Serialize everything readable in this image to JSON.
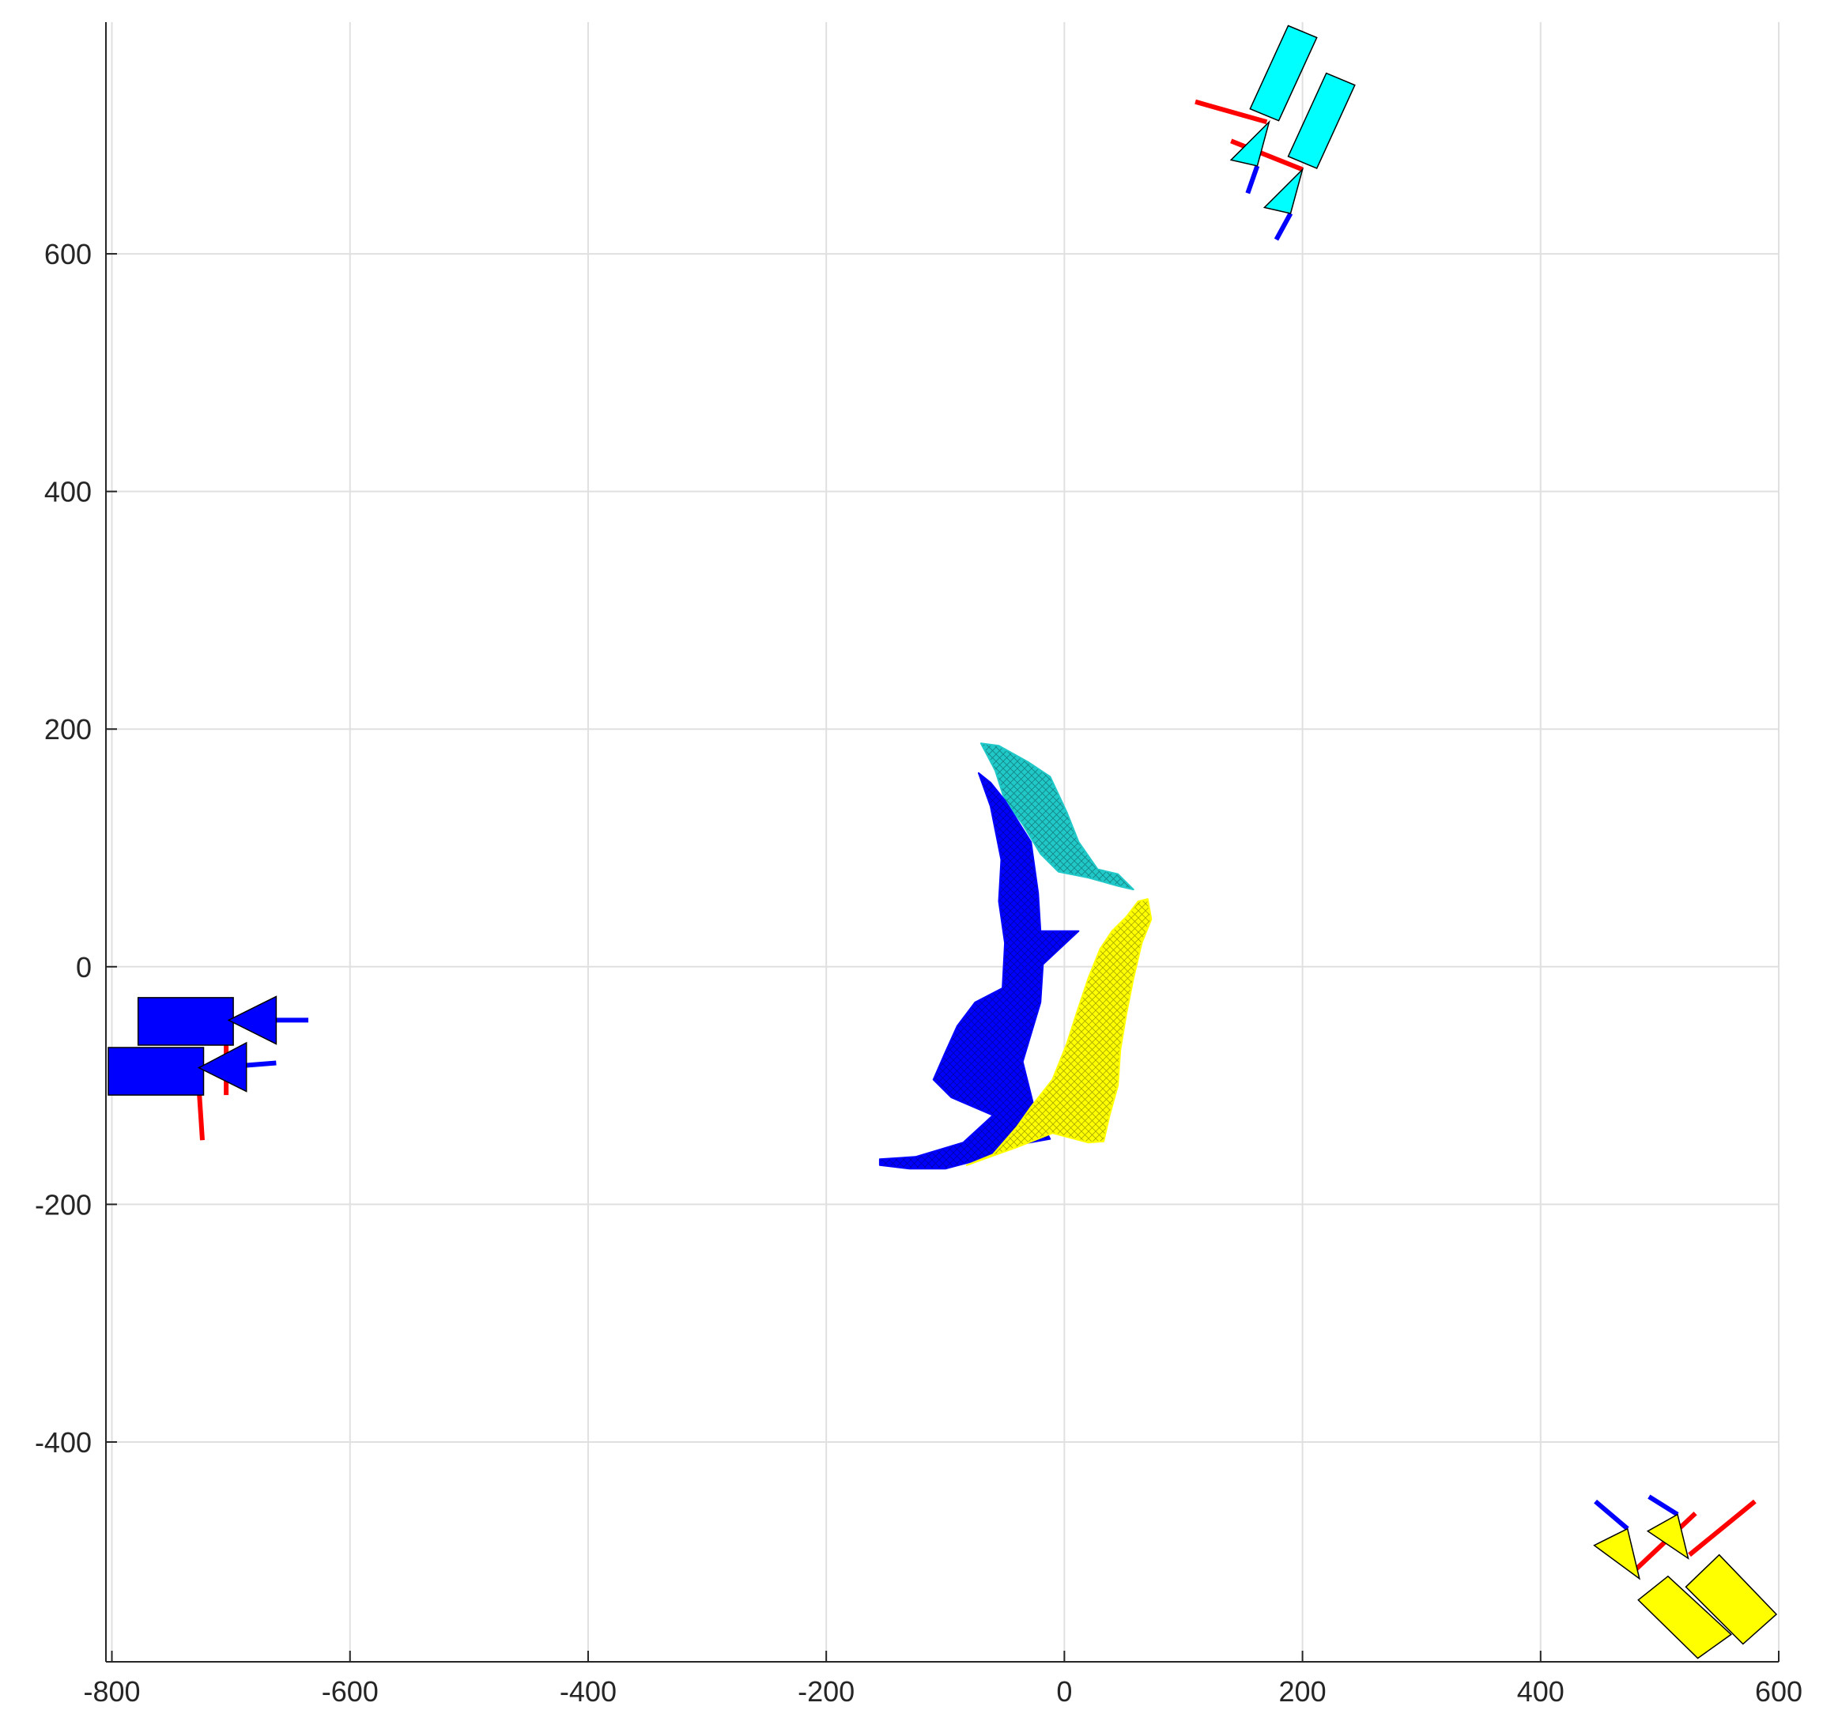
{
  "chart_data": {
    "type": "scatter",
    "title": "",
    "xlabel": "",
    "ylabel": "",
    "xlim": [
      -805,
      600
    ],
    "ylim": [
      -585,
      795
    ],
    "grid": true,
    "x_ticks": [
      -800,
      -600,
      -400,
      -200,
      0,
      200,
      400,
      600
    ],
    "y_ticks": [
      -400,
      -200,
      0,
      200,
      400,
      600
    ],
    "x_tick_labels": [
      "-800",
      "-600",
      "-400",
      "-200",
      "0",
      "200",
      "400",
      "600"
    ],
    "y_tick_labels": [
      "-400",
      "-200",
      "0",
      "200",
      "400",
      "600"
    ],
    "colors": {
      "cyan": "#00ffff",
      "blue": "#0000ff",
      "yellow": "#ffff00",
      "red": "#ff0000",
      "mesh_cyan": "#20c8c8",
      "edge": "#000000",
      "grid": "#e0e0e0",
      "axis": "#262626"
    },
    "surfaces": [
      {
        "color": "mesh_cyan",
        "outline": [
          [
            -70,
            188
          ],
          [
            -55,
            186
          ],
          [
            -30,
            172
          ],
          [
            -12,
            160
          ],
          [
            2,
            130
          ],
          [
            12,
            105
          ],
          [
            28,
            82
          ],
          [
            45,
            78
          ],
          [
            58,
            65
          ],
          [
            45,
            68
          ],
          [
            20,
            75
          ],
          [
            -5,
            80
          ],
          [
            -20,
            95
          ],
          [
            -35,
            120
          ],
          [
            -50,
            140
          ],
          [
            -58,
            165
          ],
          [
            -70,
            188
          ]
        ]
      },
      {
        "color": "blue",
        "outline": [
          [
            -72,
            163
          ],
          [
            -62,
            155
          ],
          [
            -50,
            140
          ],
          [
            -28,
            105
          ],
          [
            -22,
            62
          ],
          [
            -20,
            30
          ],
          [
            12,
            30
          ],
          [
            -18,
            2
          ],
          [
            -20,
            -30
          ],
          [
            -35,
            -80
          ],
          [
            -25,
            -120
          ],
          [
            -12,
            -145
          ],
          [
            -40,
            -150
          ],
          [
            -70,
            -162
          ],
          [
            -100,
            -170
          ],
          [
            -130,
            -170
          ],
          [
            -155,
            -167
          ],
          [
            -155,
            -162
          ],
          [
            -125,
            -160
          ],
          [
            -85,
            -148
          ],
          [
            -60,
            -125
          ],
          [
            -95,
            -110
          ],
          [
            -110,
            -95
          ],
          [
            -100,
            -72
          ],
          [
            -90,
            -50
          ],
          [
            -75,
            -30
          ],
          [
            -52,
            -18
          ],
          [
            -50,
            20
          ],
          [
            -55,
            55
          ],
          [
            -53,
            90
          ],
          [
            -62,
            135
          ],
          [
            -72,
            163
          ]
        ]
      },
      {
        "color": "yellow",
        "outline": [
          [
            70,
            57
          ],
          [
            73,
            40
          ],
          [
            65,
            20
          ],
          [
            58,
            -10
          ],
          [
            52,
            -40
          ],
          [
            47,
            -70
          ],
          [
            45,
            -100
          ],
          [
            38,
            -125
          ],
          [
            33,
            -147
          ],
          [
            20,
            -148
          ],
          [
            -10,
            -140
          ],
          [
            -40,
            -152
          ],
          [
            -82,
            -167
          ],
          [
            -60,
            -158
          ],
          [
            -40,
            -135
          ],
          [
            -28,
            -118
          ],
          [
            -10,
            -95
          ],
          [
            2,
            -65
          ],
          [
            10,
            -40
          ],
          [
            20,
            -10
          ],
          [
            30,
            15
          ],
          [
            40,
            30
          ],
          [
            52,
            42
          ],
          [
            62,
            55
          ],
          [
            70,
            57
          ]
        ]
      }
    ],
    "cameras": [
      {
        "color": "cyan",
        "bodies": [
          [
            [
              188,
              792
            ],
            [
              212,
              782
            ],
            [
              180,
              712
            ],
            [
              156,
              722
            ]
          ],
          [
            [
              220,
              752
            ],
            [
              244,
              742
            ],
            [
              212,
              672
            ],
            [
              188,
              682
            ]
          ]
        ],
        "cones": [
          [
            [
              172,
              711
            ],
            [
              162,
              674
            ],
            [
              140,
              679
            ]
          ],
          [
            [
              200,
              671
            ],
            [
              190,
              634
            ],
            [
              168,
              639
            ]
          ]
        ],
        "red_axes": [
          [
            [
              110,
              728
            ],
            [
              170,
              711
            ]
          ],
          [
            [
              140,
              695
            ],
            [
              200,
              671
            ]
          ]
        ],
        "blue_axes": [
          [
            [
              162,
              674
            ],
            [
              154,
              651
            ]
          ],
          [
            [
              190,
              634
            ],
            [
              178,
              612
            ]
          ]
        ]
      },
      {
        "color": "blue",
        "bodies": [
          [
            [
              -778,
              -26
            ],
            [
              -698,
              -26
            ],
            [
              -698,
              -66
            ],
            [
              -778,
              -66
            ]
          ],
          [
            [
              -803,
              -68
            ],
            [
              -723,
              -68
            ],
            [
              -723,
              -108
            ],
            [
              -803,
              -108
            ]
          ]
        ],
        "cones": [
          [
            [
              -702,
              -45
            ],
            [
              -662,
              -25
            ],
            [
              -662,
              -65
            ]
          ],
          [
            [
              -727,
              -85
            ],
            [
              -687,
              -64
            ],
            [
              -687,
              -105
            ]
          ]
        ],
        "red_axes": [
          [
            [
              -704,
              -45
            ],
            [
              -704,
              -108
            ]
          ],
          [
            [
              -728,
              -85
            ],
            [
              -724,
              -146
            ]
          ]
        ],
        "blue_axes": [
          [
            [
              -662,
              -45
            ],
            [
              -635,
              -45
            ]
          ],
          [
            [
              -687,
              -83
            ],
            [
              -662,
              -81
            ]
          ]
        ]
      },
      {
        "color": "yellow",
        "bodies": [
          [
            [
              507,
              -513
            ],
            [
              560,
              -562
            ],
            [
              532,
              -582
            ],
            [
              482,
              -533
            ]
          ],
          [
            [
              550,
              -495
            ],
            [
              598,
              -545
            ],
            [
              570,
              -570
            ],
            [
              522,
              -522
            ]
          ]
        ],
        "cones": [
          [
            [
              483,
              -515
            ],
            [
              473,
              -473
            ],
            [
              445,
              -487
            ]
          ],
          [
            [
              524,
              -498
            ],
            [
              515,
              -461
            ],
            [
              490,
              -475
            ]
          ]
        ],
        "red_axes": [
          [
            [
              477,
              -510
            ],
            [
              530,
              -460
            ]
          ],
          [
            [
              525,
              -495
            ],
            [
              580,
              -450
            ]
          ]
        ],
        "blue_axes": [
          [
            [
              473,
              -473
            ],
            [
              446,
              -450
            ]
          ],
          [
            [
              515,
              -461
            ],
            [
              491,
              -446
            ]
          ]
        ]
      }
    ]
  }
}
